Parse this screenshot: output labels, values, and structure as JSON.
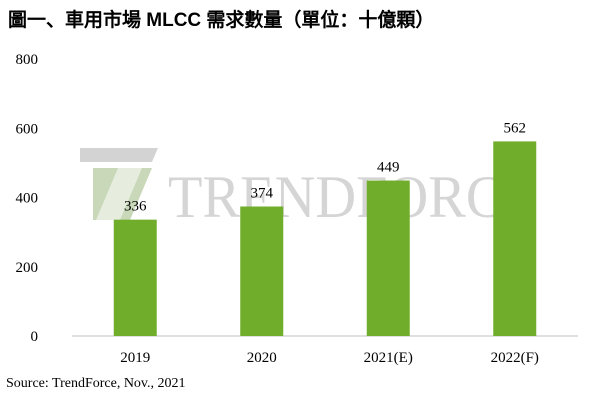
{
  "title": "圖一、車用市場 MLCC 需求數量（單位：十億顆）",
  "source": "Source: TrendForce, Nov., 2021",
  "watermark": {
    "text": "TrendForce",
    "color": "#d5d5d5",
    "logo_colors": [
      "#c8d8b8",
      "#d3d3d3"
    ]
  },
  "colors": {
    "bar": "#70ad2a",
    "axis": "#bfbfbf"
  },
  "chart_data": {
    "type": "bar",
    "categories": [
      "2019",
      "2020",
      "2021(E)",
      "2022(F)"
    ],
    "values": [
      336,
      374,
      449,
      562
    ],
    "data_labels": [
      "336",
      "374",
      "449",
      "562"
    ],
    "y_ticks": [
      0,
      200,
      400,
      600,
      800
    ],
    "ylim": [
      0,
      800
    ],
    "grid": false,
    "legend": "none"
  }
}
